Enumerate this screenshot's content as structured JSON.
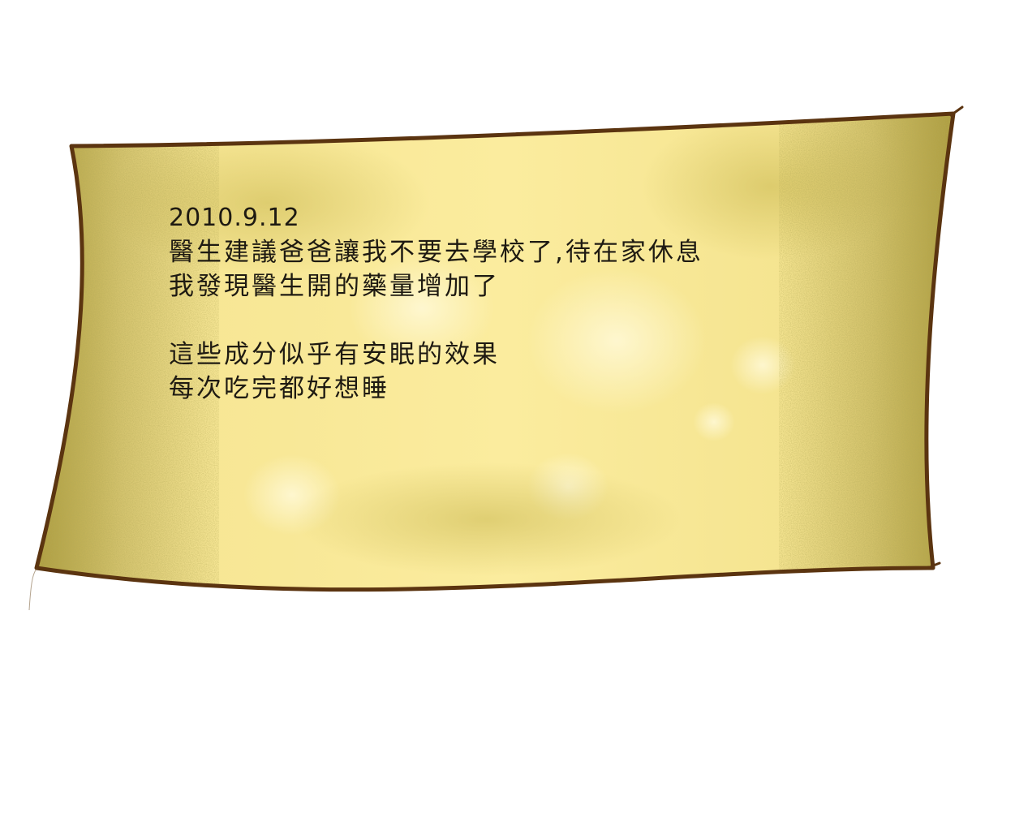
{
  "note": {
    "date": "2010.9.12",
    "lines": [
      "醫生建議爸爸讓我不要去學校了,待在家休息",
      "我發現醫生開的藥量增加了",
      "",
      "這些成分似乎有安眠的效果",
      "每次吃完都好想睡"
    ]
  },
  "colors": {
    "paper": "#fbeb9a",
    "paper_shadow": "#b5a43e",
    "outline": "#5b3410",
    "ink": "#1e1a12"
  }
}
